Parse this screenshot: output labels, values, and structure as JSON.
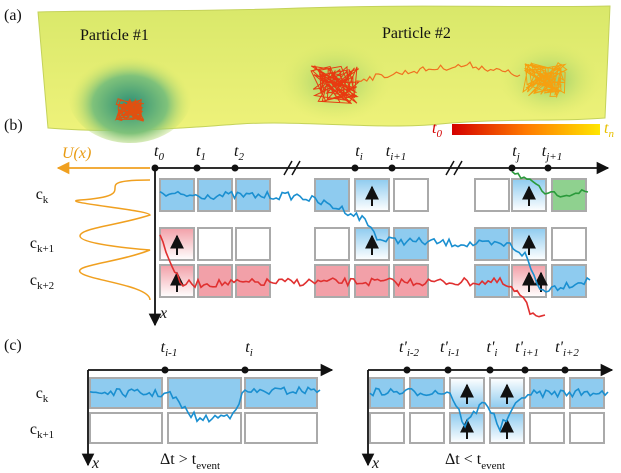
{
  "panel_a": {
    "label": "(a)",
    "particle_1": "Particle #1",
    "particle_2": "Particle #2",
    "colorbar": {
      "start": {
        "main": "t",
        "sub": "0"
      },
      "end": {
        "main": "t",
        "sub": "n"
      }
    }
  },
  "panel_b": {
    "label": "(b)",
    "potential": "U(x)",
    "axis": "x",
    "times": [
      {
        "main": "t",
        "sub": "0"
      },
      {
        "main": "t",
        "sub": "1"
      },
      {
        "main": "t",
        "sub": "2"
      },
      {
        "main": "t",
        "sub": "i"
      },
      {
        "main": "t",
        "sub": "i+1"
      },
      {
        "main": "t",
        "sub": "j"
      },
      {
        "main": "t",
        "sub": "j+1"
      }
    ],
    "states": [
      {
        "main": "c",
        "sub": "k"
      },
      {
        "main": "c",
        "sub": "k+1"
      },
      {
        "main": "c",
        "sub": "k+2"
      }
    ]
  },
  "panel_c": {
    "label": "(c)",
    "left": {
      "axis": "x",
      "times": [
        {
          "main": "t",
          "sub": "i-1"
        },
        {
          "main": "t",
          "sub": "i"
        }
      ],
      "states": [
        {
          "main": "c",
          "sub": "k"
        },
        {
          "main": "c",
          "sub": "k+1"
        }
      ],
      "condition": {
        "main": "Δt > t",
        "sub": "event"
      }
    },
    "right": {
      "axis": "x",
      "times": [
        {
          "main": "t'",
          "sub": "i-2"
        },
        {
          "main": "t'",
          "sub": "i-1"
        },
        {
          "main": "t'",
          "sub": "i"
        },
        {
          "main": "t'",
          "sub": "i+1"
        },
        {
          "main": "t'",
          "sub": "i+2"
        }
      ],
      "condition": {
        "main": "Δt < t",
        "sub": "event"
      }
    }
  }
}
